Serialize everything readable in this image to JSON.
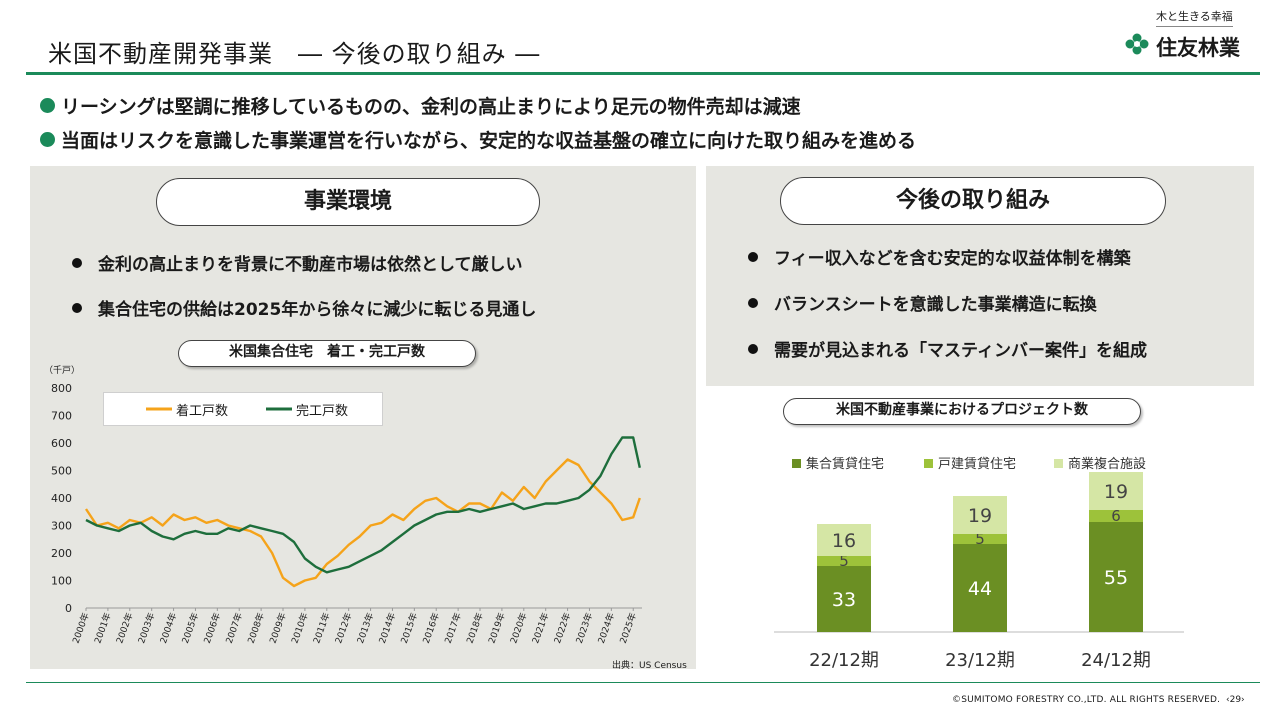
{
  "header": {
    "title": "米国不動産開発事業　― 今後の取り組み ―",
    "logo_tagline": "木と生きる幸福",
    "logo_name": "住友林業"
  },
  "bullets": [
    "リーシングは堅調に推移しているものの、金利の高止まりにより足元の物件売却は減速",
    "当面はリスクを意識した事業運営を行いながら、安定的な収益基盤の確立に向けた取り組みを進める"
  ],
  "left_panel": {
    "heading": "事業環境",
    "points": [
      "金利の高止まりを背景に不動産市場は依然として厳しい",
      "集合住宅の供給は2025年から徐々に減少に転じる見通し"
    ],
    "chart_title": "米国集合住宅　着工・完工戸数",
    "source": "出典：US Census"
  },
  "right_panel": {
    "heading": "今後の取り組み",
    "points": [
      "フィー収入などを含む安定的な収益体制を構築",
      "バランスシートを意識した事業構造に転換",
      "需要が見込まれる「マスティンバー案件」を組成"
    ],
    "chart_title": "米国不動産事業におけるプロジェクト数"
  },
  "colors": {
    "brand_green": "#1b8a5a",
    "starts_line": "#f5a31a",
    "completions_line": "#1e6e3c",
    "multifamily": "#6b8f23",
    "single_family": "#9dc23a",
    "commercial": "#d5e6a5",
    "panel_bg": "#e6e6e1"
  },
  "chart_data": [
    {
      "type": "line",
      "unit_label": "（千戸）",
      "ylim": [
        0,
        800
      ],
      "yticks": [
        0,
        100,
        200,
        300,
        400,
        500,
        600,
        700,
        800
      ],
      "x_ticks": [
        "2000年",
        "2001年",
        "2002年",
        "2003年",
        "2004年",
        "2005年",
        "2006年",
        "2007年",
        "2008年",
        "2009年",
        "2010年",
        "2011年",
        "2012年",
        "2013年",
        "2014年",
        "2015年",
        "2016年",
        "2017年",
        "2018年",
        "2019年",
        "2020年",
        "2021年",
        "2022年",
        "2023年",
        "2024年",
        "2025年"
      ],
      "grid": false,
      "legend": "top-left",
      "x_start_year": 2000,
      "x_end_year": 2025.4,
      "series": [
        {
          "name": "着工戸数",
          "color": "#f5a31a",
          "x": [
            2000,
            2000.5,
            2001,
            2001.5,
            2002,
            2002.5,
            2003,
            2003.5,
            2004,
            2004.5,
            2005,
            2005.5,
            2006,
            2006.5,
            2007,
            2007.5,
            2008,
            2008.5,
            2009,
            2009.5,
            2010,
            2010.5,
            2011,
            2011.5,
            2012,
            2012.5,
            2013,
            2013.5,
            2014,
            2014.5,
            2015,
            2015.5,
            2016,
            2016.5,
            2017,
            2017.5,
            2018,
            2018.5,
            2019,
            2019.5,
            2020,
            2020.5,
            2021,
            2021.5,
            2022,
            2022.5,
            2023,
            2023.5,
            2024,
            2024.5,
            2025,
            2025.3
          ],
          "values": [
            360,
            300,
            310,
            290,
            320,
            310,
            330,
            300,
            340,
            320,
            330,
            310,
            320,
            300,
            290,
            280,
            260,
            200,
            110,
            80,
            100,
            110,
            160,
            190,
            230,
            260,
            300,
            310,
            340,
            320,
            360,
            390,
            400,
            370,
            350,
            380,
            380,
            360,
            420,
            390,
            440,
            400,
            460,
            500,
            540,
            520,
            460,
            420,
            380,
            320,
            330,
            400
          ]
        },
        {
          "name": "完工戸数",
          "color": "#1e6e3c",
          "x": [
            2000,
            2000.5,
            2001,
            2001.5,
            2002,
            2002.5,
            2003,
            2003.5,
            2004,
            2004.5,
            2005,
            2005.5,
            2006,
            2006.5,
            2007,
            2007.5,
            2008,
            2008.5,
            2009,
            2009.5,
            2010,
            2010.5,
            2011,
            2011.5,
            2012,
            2012.5,
            2013,
            2013.5,
            2014,
            2014.5,
            2015,
            2015.5,
            2016,
            2016.5,
            2017,
            2017.5,
            2018,
            2018.5,
            2019,
            2019.5,
            2020,
            2020.5,
            2021,
            2021.5,
            2022,
            2022.5,
            2023,
            2023.5,
            2024,
            2024.5,
            2025,
            2025.3
          ],
          "values": [
            320,
            300,
            290,
            280,
            300,
            310,
            280,
            260,
            250,
            270,
            280,
            270,
            270,
            290,
            280,
            300,
            290,
            280,
            270,
            240,
            180,
            150,
            130,
            140,
            150,
            170,
            190,
            210,
            240,
            270,
            300,
            320,
            340,
            350,
            350,
            360,
            350,
            360,
            370,
            380,
            360,
            370,
            380,
            380,
            390,
            400,
            430,
            480,
            560,
            620,
            620,
            510
          ]
        }
      ]
    },
    {
      "type": "bar",
      "stacked": true,
      "categories": [
        "22/12期",
        "23/12期",
        "24/12期"
      ],
      "series": [
        {
          "name": "集合賃貸住宅",
          "values": [
            33,
            44,
            55
          ],
          "color": "#6b8f23"
        },
        {
          "name": "戸建賃貸住宅",
          "values": [
            5,
            5,
            6
          ],
          "color": "#9dc23a"
        },
        {
          "name": "商業複合施設",
          "values": [
            16,
            19,
            19
          ],
          "color": "#d5e6a5"
        }
      ],
      "legend": "top"
    }
  ],
  "footer": {
    "copyright": "©SUMITOMO FORESTRY CO.,LTD. ALL RIGHTS RESERVED.",
    "page": "‹29›"
  }
}
